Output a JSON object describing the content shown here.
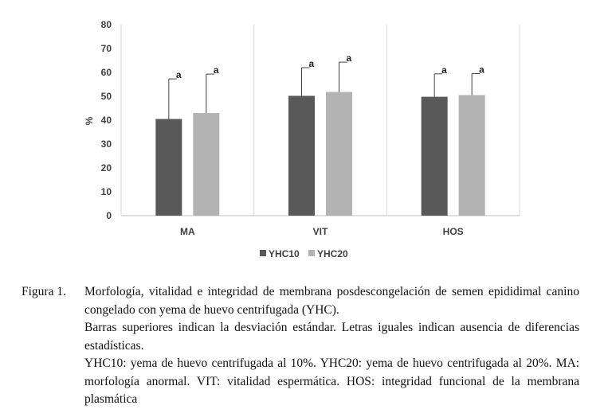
{
  "chart_data": {
    "type": "bar",
    "ylabel": "%",
    "ylim": [
      0,
      80
    ],
    "yticks": [
      0,
      10,
      20,
      30,
      40,
      50,
      60,
      70,
      80
    ],
    "grid": "vertical-separators",
    "legend_position": "bottom",
    "categories": [
      "MA",
      "VIT",
      "HOS"
    ],
    "series": [
      {
        "name": "YHC10",
        "color": "#595959",
        "values": [
          40.5,
          50.2,
          49.8
        ],
        "error": [
          16.8,
          11.8,
          9.6
        ],
        "labels": [
          "a",
          "a",
          "a"
        ]
      },
      {
        "name": "YHC20",
        "color": "#b3b3b3",
        "values": [
          43.0,
          51.8,
          50.5
        ],
        "error": [
          16.3,
          12.5,
          9.0
        ],
        "labels": [
          "a",
          "a",
          "a"
        ]
      }
    ]
  },
  "caption": {
    "label": "Figura 1.",
    "lines": [
      "Morfología, vitalidad e integridad de membrana posdescongelación de semen epididimal canino congelado con yema de huevo centrifugada (YHC).",
      "Barras superiores indican la desviación estándar. Letras iguales indican ausencia de diferencias estadísticas.",
      "YHC10: yema de huevo centrifugada al 10%. YHC20: yema de huevo centrifugada al 20%. MA: morfología anormal. VIT: vitalidad espermática. HOS: integridad funcional de la membrana plasmática"
    ]
  }
}
